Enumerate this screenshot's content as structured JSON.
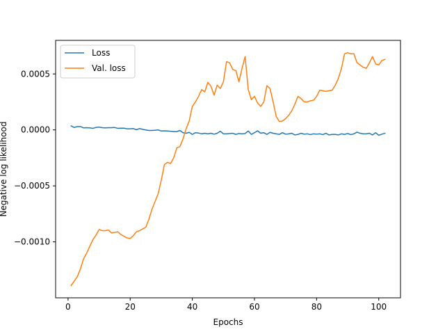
{
  "chart_data": {
    "type": "line",
    "title": "",
    "xlabel": "Epochs",
    "ylabel": "Negative log likelihood",
    "xlim": [
      -4.0,
      107.0
    ],
    "ylim": [
      -0.0015,
      0.0008
    ],
    "xticks": [
      0,
      20,
      40,
      60,
      80,
      100
    ],
    "yticks": [
      -0.001,
      -0.0005,
      0.0,
      0.0005
    ],
    "xtick_labels": [
      "0",
      "20",
      "40",
      "60",
      "80",
      "100"
    ],
    "ytick_labels": [
      "−0.0010",
      "−0.0005",
      "0.0000",
      "0.0005"
    ],
    "grid": false,
    "legend_position": "top-left",
    "series": [
      {
        "name": "Loss",
        "color": "#1f77b4",
        "x": [
          1,
          2,
          3,
          4,
          5,
          6,
          7,
          8,
          9,
          10,
          11,
          12,
          13,
          14,
          15,
          16,
          17,
          18,
          19,
          20,
          21,
          22,
          23,
          24,
          25,
          26,
          27,
          28,
          29,
          30,
          31,
          32,
          33,
          34,
          35,
          36,
          37,
          38,
          39,
          40,
          41,
          42,
          43,
          44,
          45,
          46,
          47,
          48,
          49,
          50,
          51,
          52,
          53,
          54,
          55,
          56,
          57,
          58,
          59,
          60,
          61,
          62,
          63,
          64,
          65,
          66,
          67,
          68,
          69,
          70,
          71,
          72,
          73,
          74,
          75,
          76,
          77,
          78,
          79,
          80,
          81,
          82,
          83,
          84,
          85,
          86,
          87,
          88,
          89,
          90,
          91,
          92,
          93,
          94,
          95,
          96,
          97,
          98,
          99,
          100,
          101,
          102
        ],
        "y": [
          3.5e-05,
          2.2e-05,
          3e-05,
          3e-05,
          1.8e-05,
          2e-05,
          1.8e-05,
          1.4e-05,
          2.2e-05,
          2.5e-05,
          2e-05,
          1.8e-05,
          2e-05,
          2e-05,
          2.2e-05,
          1.4e-05,
          1.5e-05,
          1.5e-05,
          1e-05,
          1e-05,
          1.2e-05,
          2e-06,
          1.2e-05,
          5e-06,
          0.0,
          -5e-06,
          -5e-06,
          -3e-06,
          0.0,
          -1e-05,
          -8e-06,
          -1e-05,
          -1.2e-05,
          -1.5e-05,
          -1.5e-05,
          -5e-06,
          -2.5e-05,
          -3e-05,
          -2.2e-05,
          -4e-05,
          -2.5e-05,
          -2.8e-05,
          -3.5e-05,
          -3e-05,
          -3.5e-05,
          -3e-05,
          -3.8e-05,
          -3e-05,
          -1.2e-05,
          -3.5e-05,
          -3.5e-05,
          -3.2e-05,
          -3e-05,
          -4e-05,
          -3.2e-05,
          -3.5e-05,
          -3.2e-05,
          -1e-05,
          -4e-05,
          -2.5e-05,
          -8e-06,
          -3e-05,
          -2.5e-05,
          -4e-05,
          -2.2e-05,
          -3e-05,
          -3.5e-05,
          -4e-05,
          -2.5e-05,
          -3.8e-05,
          -3.5e-05,
          -3e-05,
          -4.5e-05,
          -4e-05,
          -3e-05,
          -3.8e-05,
          -3.5e-05,
          -4.2e-05,
          -3.5e-05,
          -3.8e-05,
          -3.5e-05,
          -4.2e-05,
          -3e-05,
          -4.5e-05,
          -4e-05,
          -4e-05,
          -4.5e-05,
          -3.5e-05,
          -4e-05,
          -3.2e-05,
          -4.2e-05,
          -3.5e-05,
          -2e-05,
          -3e-05,
          -3.5e-05,
          -3.5e-05,
          -3e-05,
          -4.5e-05,
          -2.5e-05,
          -4.8e-05,
          -3.8e-05,
          -3e-05
        ]
      },
      {
        "name": "Val. loss",
        "color": "#ff7f0e",
        "x": [
          1,
          2,
          3,
          4,
          5,
          6,
          7,
          8,
          9,
          10,
          11,
          12,
          13,
          14,
          15,
          16,
          17,
          18,
          19,
          20,
          21,
          22,
          23,
          24,
          25,
          26,
          27,
          28,
          29,
          30,
          31,
          32,
          33,
          34,
          35,
          36,
          37,
          38,
          39,
          40,
          41,
          42,
          43,
          44,
          45,
          46,
          47,
          48,
          49,
          50,
          51,
          52,
          53,
          54,
          55,
          56,
          57,
          58,
          59,
          60,
          61,
          62,
          63,
          64,
          65,
          66,
          67,
          68,
          69,
          70,
          71,
          72,
          73,
          74,
          75,
          76,
          77,
          78,
          79,
          80,
          81,
          82,
          83,
          84,
          85,
          86,
          87,
          88,
          89,
          90,
          91,
          92,
          93,
          94,
          95,
          96,
          97,
          98,
          99,
          100,
          101,
          102
        ],
        "y": [
          -0.00139,
          -0.00135,
          -0.00131,
          -0.00124,
          -0.00115,
          -0.0011,
          -0.00104,
          -0.00098,
          -0.00094,
          -0.00089,
          -0.0009,
          -0.0009,
          -0.000895,
          -0.00092,
          -0.000915,
          -0.00091,
          -0.000935,
          -0.00095,
          -0.000965,
          -0.00097,
          -0.000945,
          -0.00091,
          -0.0009,
          -0.000885,
          -0.00087,
          -0.0008,
          -0.00071,
          -0.00064,
          -0.00057,
          -0.00045,
          -0.00031,
          -0.00029,
          -0.0003,
          -0.00025,
          -0.00016,
          -0.00015,
          -8e-05,
          1e-05,
          8e-05,
          0.00021,
          0.00025,
          0.0003,
          0.00036,
          0.00034,
          0.000425,
          0.00039,
          0.00031,
          0.0004,
          0.00037,
          0.00043,
          0.00061,
          0.0006,
          0.00054,
          0.00053,
          0.00043,
          0.00055,
          0.000655,
          0.00036,
          0.00027,
          0.0003,
          0.00024,
          0.00021,
          0.00025,
          0.000395,
          0.00037,
          0.00025,
          0.00012,
          7.5e-05,
          8e-05,
          0.0001,
          0.00013,
          0.00017,
          0.00023,
          0.0003,
          0.00028,
          0.00025,
          0.00025,
          0.00026,
          0.000265,
          0.0003,
          0.000355,
          0.00035,
          0.000345,
          0.00035,
          0.000355,
          0.0004,
          0.00046,
          0.00055,
          0.00068,
          0.00069,
          0.00068,
          0.00068,
          0.0006,
          0.00058,
          0.00056,
          0.00055,
          0.0006,
          0.000655,
          0.00059,
          0.00058,
          0.00062,
          0.00063
        ]
      }
    ]
  }
}
